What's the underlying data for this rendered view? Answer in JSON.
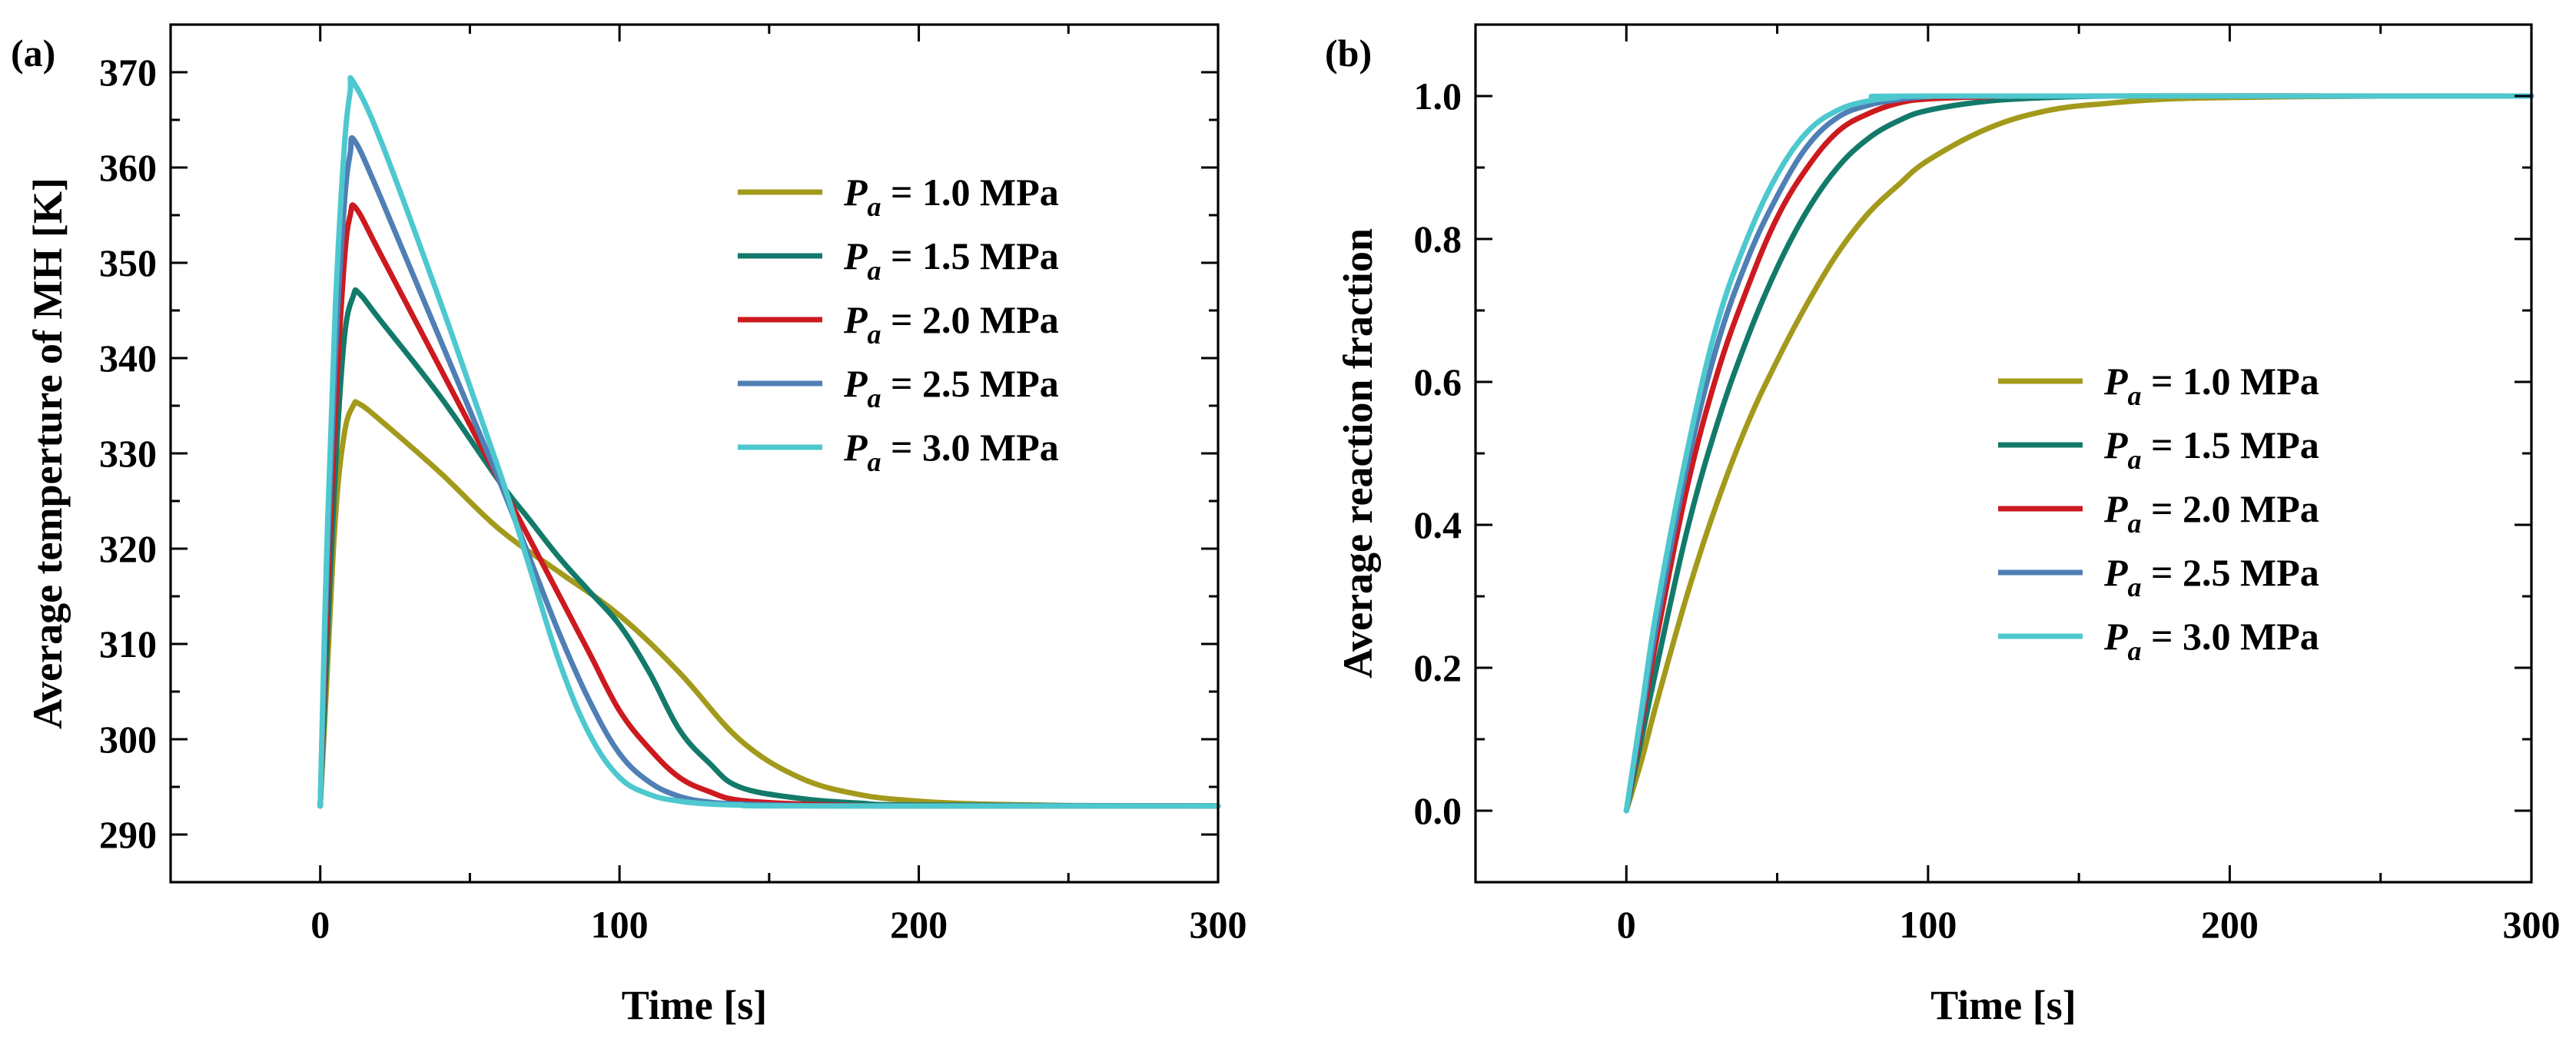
{
  "chart_data": [
    {
      "panel_label": "(a)",
      "type": "line",
      "xlabel": "Time [s]",
      "ylabel": "Average temperture of MH [K]",
      "xlim": [
        -50,
        300
      ],
      "ylim": [
        285,
        375
      ],
      "xticks": [
        0,
        100,
        200,
        300
      ],
      "yticks": [
        290,
        300,
        310,
        320,
        330,
        340,
        350,
        360,
        370
      ],
      "legend_position": "top-right",
      "series": [
        {
          "name": "1.0 MPa",
          "color": "#a39a1c",
          "x": [
            0,
            2,
            5,
            8,
            11,
            13,
            20,
            40,
            60,
            80,
            100,
            120,
            140,
            160,
            180,
            200,
            220,
            240,
            260,
            300
          ],
          "y": [
            293,
            305,
            323,
            332,
            335,
            335.2,
            333.5,
            328,
            322,
            317.5,
            313,
            307,
            300,
            296,
            294.2,
            293.5,
            293.2,
            293.1,
            293,
            293
          ]
        },
        {
          "name": "1.5 MPa",
          "color": "#137a6a",
          "x": [
            0,
            2,
            5,
            8,
            11,
            13,
            20,
            40,
            60,
            70,
            80,
            90,
            100,
            110,
            120,
            130,
            140,
            160,
            180,
            200,
            300
          ],
          "y": [
            293,
            308,
            328,
            342,
            346.5,
            346.8,
            344,
            336,
            327,
            323,
            319,
            315.5,
            312,
            307,
            301,
            297.5,
            295,
            293.8,
            293.3,
            293.1,
            293
          ]
        },
        {
          "name": "2.0 MPa",
          "color": "#cc1a1f",
          "x": [
            0,
            2,
            5,
            8,
            10,
            12,
            20,
            40,
            60,
            70,
            80,
            90,
            100,
            110,
            120,
            130,
            140,
            160,
            180,
            200,
            300
          ],
          "y": [
            293,
            312,
            334,
            350,
            355,
            355.7,
            351,
            339,
            327,
            321,
            315,
            309,
            303,
            299,
            296,
            294.5,
            293.6,
            293.2,
            293.05,
            293,
            293
          ]
        },
        {
          "name": "2.5 MPa",
          "color": "#4f7fb5",
          "x": [
            0,
            2,
            5,
            8,
            10,
            11.5,
            20,
            40,
            60,
            70,
            80,
            90,
            100,
            110,
            120,
            130,
            140,
            160,
            180,
            300
          ],
          "y": [
            293,
            315,
            340,
            356,
            361.5,
            362.8,
            357,
            342,
            327,
            319,
            311,
            304,
            298.5,
            295.5,
            294,
            293.4,
            293.2,
            293.05,
            293,
            293
          ]
        },
        {
          "name": "3.0 MPa",
          "color": "#4ec8cf",
          "x": [
            0,
            2,
            5,
            8,
            10,
            11,
            20,
            40,
            60,
            70,
            80,
            90,
            100,
            110,
            120,
            130,
            140,
            160,
            300
          ],
          "y": [
            293,
            318,
            345,
            362,
            368,
            369,
            363,
            346,
            328,
            318,
            308,
            300.5,
            296,
            294.2,
            293.5,
            293.2,
            293.1,
            293,
            293
          ]
        }
      ]
    },
    {
      "panel_label": "(b)",
      "type": "line",
      "xlabel": "Time [s]",
      "ylabel": "Average reaction fraction",
      "xlim": [
        -50,
        300
      ],
      "ylim": [
        -0.1,
        1.1
      ],
      "xticks": [
        0,
        100,
        200,
        300
      ],
      "yticks": [
        0.0,
        0.2,
        0.4,
        0.6,
        0.8,
        1.0
      ],
      "ytick_labels": [
        "0.0",
        "0.2",
        "0.4",
        "0.6",
        "0.8",
        "1.0"
      ],
      "legend_position": "center-right",
      "series": [
        {
          "name": "1.0 MPa",
          "color": "#a39a1c",
          "x": [
            0,
            5,
            10,
            20,
            30,
            40,
            50,
            60,
            70,
            80,
            90,
            100,
            120,
            140,
            160,
            180,
            200,
            220,
            250,
            300
          ],
          "y": [
            0,
            0.07,
            0.15,
            0.3,
            0.43,
            0.54,
            0.63,
            0.71,
            0.78,
            0.835,
            0.875,
            0.91,
            0.955,
            0.98,
            0.99,
            0.996,
            0.998,
            0.999,
            1.0,
            1.0
          ]
        },
        {
          "name": "1.5 MPa",
          "color": "#137a6a",
          "x": [
            0,
            5,
            10,
            20,
            30,
            40,
            50,
            60,
            70,
            80,
            90,
            100,
            120,
            140,
            160,
            200,
            300
          ],
          "y": [
            0,
            0.1,
            0.2,
            0.39,
            0.54,
            0.66,
            0.76,
            0.84,
            0.9,
            0.94,
            0.965,
            0.98,
            0.993,
            0.998,
            1.0,
            1.0,
            1.0
          ]
        },
        {
          "name": "2.0 MPa",
          "color": "#cc1a1f",
          "x": [
            0,
            5,
            10,
            20,
            30,
            40,
            50,
            60,
            70,
            80,
            90,
            100,
            120,
            140,
            300
          ],
          "y": [
            0,
            0.12,
            0.24,
            0.45,
            0.61,
            0.73,
            0.83,
            0.9,
            0.95,
            0.975,
            0.99,
            0.996,
            0.999,
            1.0,
            1.0
          ]
        },
        {
          "name": "2.5 MPa",
          "color": "#4f7fb5",
          "x": [
            0,
            5,
            10,
            20,
            30,
            40,
            50,
            60,
            70,
            80,
            90,
            100,
            120,
            300
          ],
          "y": [
            0,
            0.13,
            0.26,
            0.48,
            0.65,
            0.77,
            0.86,
            0.93,
            0.97,
            0.987,
            0.995,
            0.999,
            1.0,
            1.0
          ]
        },
        {
          "name": "3.0 MPa",
          "color": "#4ec8cf",
          "x": [
            0,
            5,
            10,
            20,
            30,
            40,
            50,
            60,
            70,
            80,
            90,
            100,
            300
          ],
          "y": [
            0,
            0.14,
            0.28,
            0.5,
            0.68,
            0.8,
            0.89,
            0.95,
            0.98,
            0.993,
            0.998,
            1.0,
            1.0
          ]
        }
      ]
    }
  ]
}
